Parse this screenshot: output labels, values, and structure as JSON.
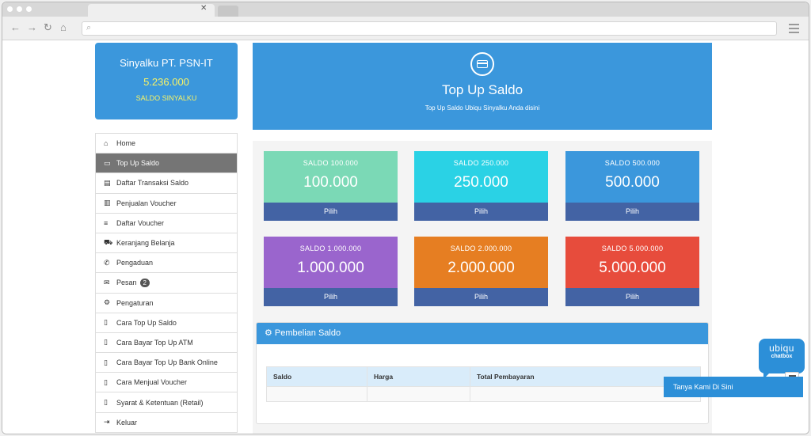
{
  "account": {
    "name": "Sinyalku PT. PSN-IT",
    "balance": "5.236.000",
    "label": "SALDO SINYALKU"
  },
  "sidebar": {
    "items": [
      {
        "label": "Home",
        "icon": "home-icon"
      },
      {
        "label": "Top Up Saldo",
        "icon": "credit-card-icon",
        "active": true
      },
      {
        "label": "Daftar Transaksi Saldo",
        "icon": "document-icon"
      },
      {
        "label": "Penjualan Voucher",
        "icon": "bar-chart-icon"
      },
      {
        "label": "Daftar Voucher",
        "icon": "list-icon"
      },
      {
        "label": "Keranjang Belanja",
        "icon": "cart-icon"
      },
      {
        "label": "Pengaduan",
        "icon": "phone-icon"
      },
      {
        "label": "Pesan",
        "icon": "envelope-icon",
        "badge": "2"
      },
      {
        "label": "Pengaturan",
        "icon": "gear-icon"
      },
      {
        "label": "Cara Top Up Saldo",
        "icon": "file-icon"
      },
      {
        "label": "Cara Bayar Top Up ATM",
        "icon": "file-icon"
      },
      {
        "label": "Cara Bayar Top Up Bank Online",
        "icon": "file-icon"
      },
      {
        "label": "Cara Menjual Voucher",
        "icon": "file-icon"
      },
      {
        "label": "Syarat & Ketentuan (Retail)",
        "icon": "file-icon"
      },
      {
        "label": "Keluar",
        "icon": "logout-icon"
      }
    ]
  },
  "hero": {
    "title": "Top Up Saldo",
    "subtitle": "Top Up Saldo Ubiqu Sinyalku Anda disini"
  },
  "cards": [
    {
      "label": "SALDO 100.000",
      "value": "100.000",
      "button": "Pilih",
      "color": "#7bd9b6"
    },
    {
      "label": "SALDO 250.000",
      "value": "250.000",
      "button": "Pilih",
      "color": "#2ad2e5"
    },
    {
      "label": "SALDO 500.000",
      "value": "500.000",
      "button": "Pilih",
      "color": "#3b97dc"
    },
    {
      "label": "SALDO 1.000.000",
      "value": "1.000.000",
      "button": "Pilih",
      "color": "#9a65cd"
    },
    {
      "label": "SALDO 2.000.000",
      "value": "2.000.000",
      "button": "Pilih",
      "color": "#e67e22"
    },
    {
      "label": "SALDO 5.000.000",
      "value": "5.000.000",
      "button": "Pilih",
      "color": "#e74c3c"
    }
  ],
  "purchase": {
    "title": "Pembelian Saldo",
    "columns": [
      "Saldo",
      "Harga",
      "Total Pembayaran"
    ]
  },
  "chat": {
    "brand": "ubiqu",
    "brand_sub": "chatbox",
    "label": "Tanya Kami Di Sini"
  },
  "colors": {
    "accent": "#3b97dc",
    "button": "#4363a4",
    "balance_text": "#f8f365",
    "sidebar_active": "#757575"
  }
}
